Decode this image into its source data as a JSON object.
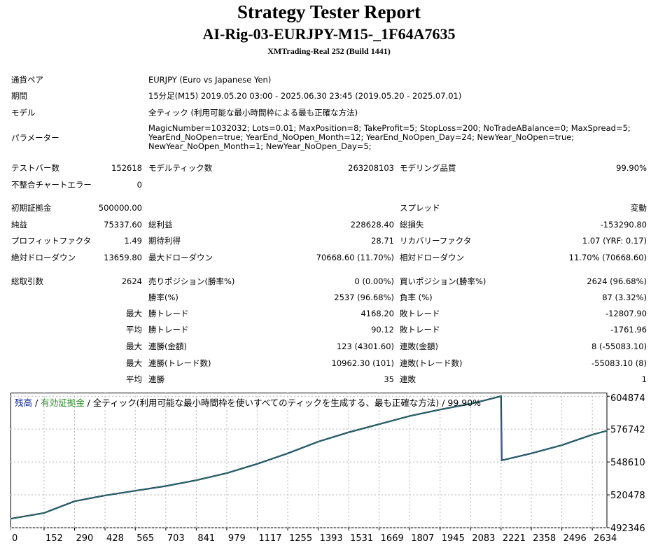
{
  "header": {
    "title": "Strategy Tester Report",
    "expert": "AI-Rig-03-EURJPY-M15-_1F64A7635",
    "server": "XMTrading-Real 252 (Build 1441)"
  },
  "info": {
    "symbol_label": "通貨ペア",
    "symbol_value": "EURJPY (Euro vs Japanese Yen)",
    "period_label": "期間",
    "period_value": "15分足(M15) 2019.05.20 03:00 - 2025.06.30 23:45 (2019.05.20 - 2025.07.01)",
    "model_label": "モデル",
    "model_value": "全ティック (利用可能な最小時間枠による最も正確な方法)",
    "params_label": "パラメーター",
    "params_lines": [
      "MagicNumber=1032032; Lots=0.01; MaxPosition=8; TakeProfit=5; StopLoss=200; NoTradeABalance=0; MaxSpread=5;",
      "YearEnd_NoOpen=true; YearEnd_NoOpen_Month=12; YearEnd_NoOpen_Day=24; NewYear_NoOpen=true;",
      "NewYear_NoOpen_Month=1; NewYear_NoOpen_Day=5;"
    ]
  },
  "stats": {
    "bars_label": "テストバー数",
    "bars": "152618",
    "ticks_label": "モデルティック数",
    "ticks": "263208103",
    "quality_label": "モデリング品質",
    "quality": "99.90%",
    "mismatch_label": "不整合チャートエラー",
    "mismatch": "0",
    "deposit_label": "初期証拠金",
    "deposit": "500000.00",
    "spread_label": "スプレッド",
    "spread": "変動",
    "net_label": "純益",
    "net": "75337.60",
    "gross_profit_label": "総利益",
    "gross_profit": "228628.40",
    "gross_loss_label": "総損失",
    "gross_loss": "-153290.80",
    "pf_label": "プロフィットファクタ",
    "pf": "1.49",
    "expected_label": "期待利得",
    "expected": "28.71",
    "recovery_label": "リカバリーファクタ",
    "recovery": "1.07 (YRF: 0.17)",
    "abs_dd_label": "絶対ドローダウン",
    "abs_dd": "13659.80",
    "max_dd_label": "最大ドローダウン",
    "max_dd": "70668.60 (11.70%)",
    "rel_dd_label": "相対ドローダウン",
    "rel_dd": "11.70% (70668.60)",
    "trades_label": "総取引数",
    "trades": "2624",
    "short_label": "売りポジション(勝率%)",
    "short": "0 (0.00%)",
    "long_label": "買いポジション(勝率%)",
    "long": "2624 (96.68%)",
    "win_pct_label": "勝率(%)",
    "win_pct": "2537 (96.68%)",
    "loss_pct_label": "負率 (%)",
    "loss_pct": "87 (3.32%)",
    "max_word": "最大",
    "avg_word": "平均",
    "largest_win_label": "勝トレード",
    "largest_win": "4168.20",
    "largest_loss_label": "敗トレード",
    "largest_loss": "-12807.90",
    "avg_win_label": "勝トレード",
    "avg_win": "90.12",
    "avg_loss_label": "敗トレード",
    "avg_loss": "-1761.96",
    "max_consec_win_label": "連勝(金額)",
    "max_consec_win": "123 (4301.60)",
    "max_consec_loss_label": "連敗(金額)",
    "max_consec_loss": "8 (-55083.10)",
    "max_consec_profit_label": "連勝(トレード数)",
    "max_consec_profit": "10962.30 (101)",
    "max_consec_lossamt_label": "連敗(トレード数)",
    "max_consec_lossamt": "-55083.10 (8)",
    "avg_consec_win_label": "連勝",
    "avg_consec_win": "35",
    "avg_consec_loss_label": "連敗",
    "avg_consec_loss": "1"
  },
  "chart_data": {
    "type": "line",
    "legend": {
      "balance": "残高",
      "sep1": " / ",
      "equity": "有効証拠金",
      "sep2": " / 全ティック(利用可能な最小時間枠を使いすべてのティックを生成する、最も正確な方法) / 99.90%"
    },
    "legend_position": "top-left",
    "x_ticks": [
      0,
      152,
      290,
      428,
      565,
      703,
      841,
      979,
      1117,
      1255,
      1393,
      1531,
      1669,
      1807,
      1945,
      2083,
      2221,
      2358,
      2496,
      2634
    ],
    "y_ticks": [
      492346,
      520478,
      548610,
      576742,
      604874
    ],
    "xlim": [
      0,
      2700
    ],
    "ylim": [
      492346,
      608000
    ],
    "grid": true,
    "series": [
      {
        "name": "残高",
        "color": "#0a1f8f",
        "x": [
          0,
          152,
          290,
          428,
          565,
          703,
          841,
          979,
          1117,
          1255,
          1393,
          1531,
          1669,
          1807,
          1945,
          2083,
          2150,
          2221,
          2224,
          2358,
          2496,
          2634,
          2700
        ],
        "y": [
          500000,
          505000,
          515000,
          520000,
          524000,
          528000,
          533000,
          539000,
          547000,
          556000,
          566000,
          574000,
          581000,
          588000,
          593500,
          598500,
          601500,
          605000,
          550000,
          556000,
          563000,
          572000,
          575337.6
        ]
      },
      {
        "name": "有効証拠金",
        "color": "#2e8b2e",
        "x": [
          0,
          152,
          290,
          428,
          565,
          703,
          841,
          979,
          1117,
          1255,
          1393,
          1531,
          1669,
          1807,
          1945,
          2083,
          2150,
          2221,
          2224,
          2358,
          2496,
          2634,
          2700
        ],
        "y": [
          500000,
          505000,
          515000,
          520000,
          524000,
          528000,
          533000,
          539000,
          547000,
          556000,
          566000,
          574000,
          581000,
          588000,
          593500,
          598500,
          601500,
          605000,
          550000,
          556000,
          563000,
          572000,
          575337.6
        ]
      }
    ]
  }
}
